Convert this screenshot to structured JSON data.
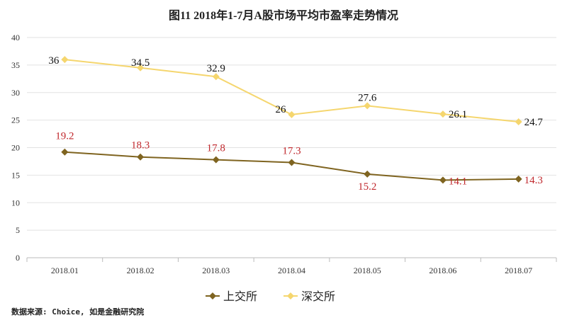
{
  "chart_data": {
    "type": "line",
    "title": "图11   2018年1-7月A股市场平均市盈率走势情况",
    "categories": [
      "2018.01",
      "2018.02",
      "2018.03",
      "2018.04",
      "2018.05",
      "2018.06",
      "2018.07"
    ],
    "ylim": [
      0,
      40
    ],
    "yticks": [
      0,
      5,
      10,
      15,
      20,
      25,
      30,
      35,
      40
    ],
    "grid": true,
    "legend": "bottom",
    "series": [
      {
        "name": "上交所",
        "values": [
          19.2,
          18.3,
          17.8,
          17.3,
          15.2,
          14.1,
          14.3
        ],
        "color": "#7F6420",
        "label_color": "#C0282D",
        "marker": "diamond"
      },
      {
        "name": "深交所",
        "values": [
          36,
          34.5,
          32.9,
          26,
          27.6,
          26.1,
          24.7
        ],
        "color": "#F5D66E",
        "label_color": "#111111",
        "marker": "diamond"
      }
    ],
    "source": "数据来源: Choice, 如是金融研究院"
  }
}
